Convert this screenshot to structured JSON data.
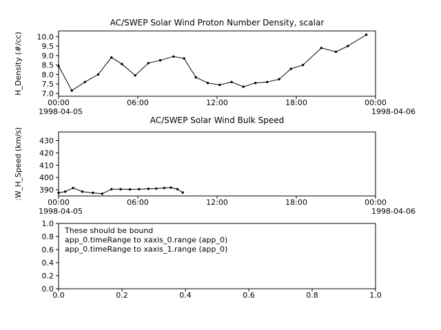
{
  "page": {
    "background": "#ffffff",
    "foreground": "#000000"
  },
  "chart_data": [
    {
      "type": "line",
      "title": "AC/SWEP  Solar Wind Proton Number Density, scalar",
      "ylabel": "H_Density (#/cc)",
      "xlim": [
        0,
        24
      ],
      "ylim": [
        6.85,
        10.3
      ],
      "yticks": [
        7.0,
        7.5,
        8.0,
        8.5,
        9.0,
        9.5,
        10.0
      ],
      "ytick_labels": [
        "7.0",
        "7.5",
        "8.0",
        "8.5",
        "9.0",
        "9.5",
        "10.0"
      ],
      "xticks": [
        0,
        6,
        12,
        18,
        24
      ],
      "xtick_labels": [
        "00:00",
        "06:00",
        "12:00",
        "18:00",
        "00:00"
      ],
      "x_start_date": "1998-04-05",
      "x_end_date": "1998-04-06",
      "legend": "none",
      "grid": false,
      "markers": true,
      "x": [
        0,
        1,
        2,
        3,
        4,
        4.8,
        5.8,
        6.8,
        7.7,
        8.7,
        9.5,
        10.4,
        11.3,
        12.2,
        13.1,
        14,
        14.9,
        15.8,
        16.7,
        17.6,
        18.5,
        19.9,
        21,
        21.9,
        23.3
      ],
      "y": [
        8.45,
        7.15,
        7.6,
        8.0,
        8.9,
        8.55,
        7.95,
        8.6,
        8.75,
        8.95,
        8.85,
        7.85,
        7.55,
        7.45,
        7.6,
        7.35,
        7.55,
        7.6,
        7.75,
        8.3,
        8.5,
        9.4,
        9.2,
        9.5,
        10.1
      ]
    },
    {
      "type": "line",
      "title": "AC/SWEP  Solar Wind Bulk Speed",
      "ylabel": ":W_H_Speed (km/s)",
      "xlim": [
        0,
        24
      ],
      "ylim": [
        385,
        437
      ],
      "yticks": [
        390,
        400,
        410,
        420,
        430
      ],
      "ytick_labels": [
        "390",
        "400",
        "410",
        "420",
        "430"
      ],
      "xticks": [
        0,
        6,
        12,
        18,
        24
      ],
      "xtick_labels": [
        "00:00",
        "06:00",
        "12:00",
        "18:00",
        "00:00"
      ],
      "x_start_date": "1998-04-05",
      "x_end_date": "1998-04-06",
      "legend": "none",
      "grid": false,
      "markers": true,
      "x": [
        0,
        0.5,
        1.1,
        1.8,
        2.6,
        3.3,
        4.0,
        4.7,
        5.4,
        6.1,
        6.8,
        7.4,
        8.0,
        8.5,
        9.0,
        9.4
      ],
      "y": [
        387.5,
        388.5,
        391.5,
        388.5,
        387.5,
        386.8,
        390.5,
        390.5,
        390.3,
        390.5,
        390.8,
        391,
        391.5,
        391.8,
        390.5,
        387.8
      ]
    },
    {
      "type": "line",
      "xlim": [
        0,
        1
      ],
      "ylim": [
        0,
        1
      ],
      "yticks": [
        0.0,
        0.2,
        0.4,
        0.6,
        0.8,
        1.0
      ],
      "ytick_labels": [
        "0.0",
        "0.2",
        "0.4",
        "0.6",
        "0.8",
        "1.0"
      ],
      "xticks": [
        0.0,
        0.2,
        0.4,
        0.6,
        0.8,
        1.0
      ],
      "xtick_labels": [
        "0.0",
        "0.2",
        "0.4",
        "0.6",
        "0.8",
        "1.0"
      ],
      "legend": "none",
      "grid": false,
      "markers": false,
      "annotations": [
        "These should be bound",
        "app_0.timeRange to xaxis_0.range  (app_0)",
        "app_0.timeRange to xaxis_1.range  (app_0)"
      ]
    }
  ]
}
